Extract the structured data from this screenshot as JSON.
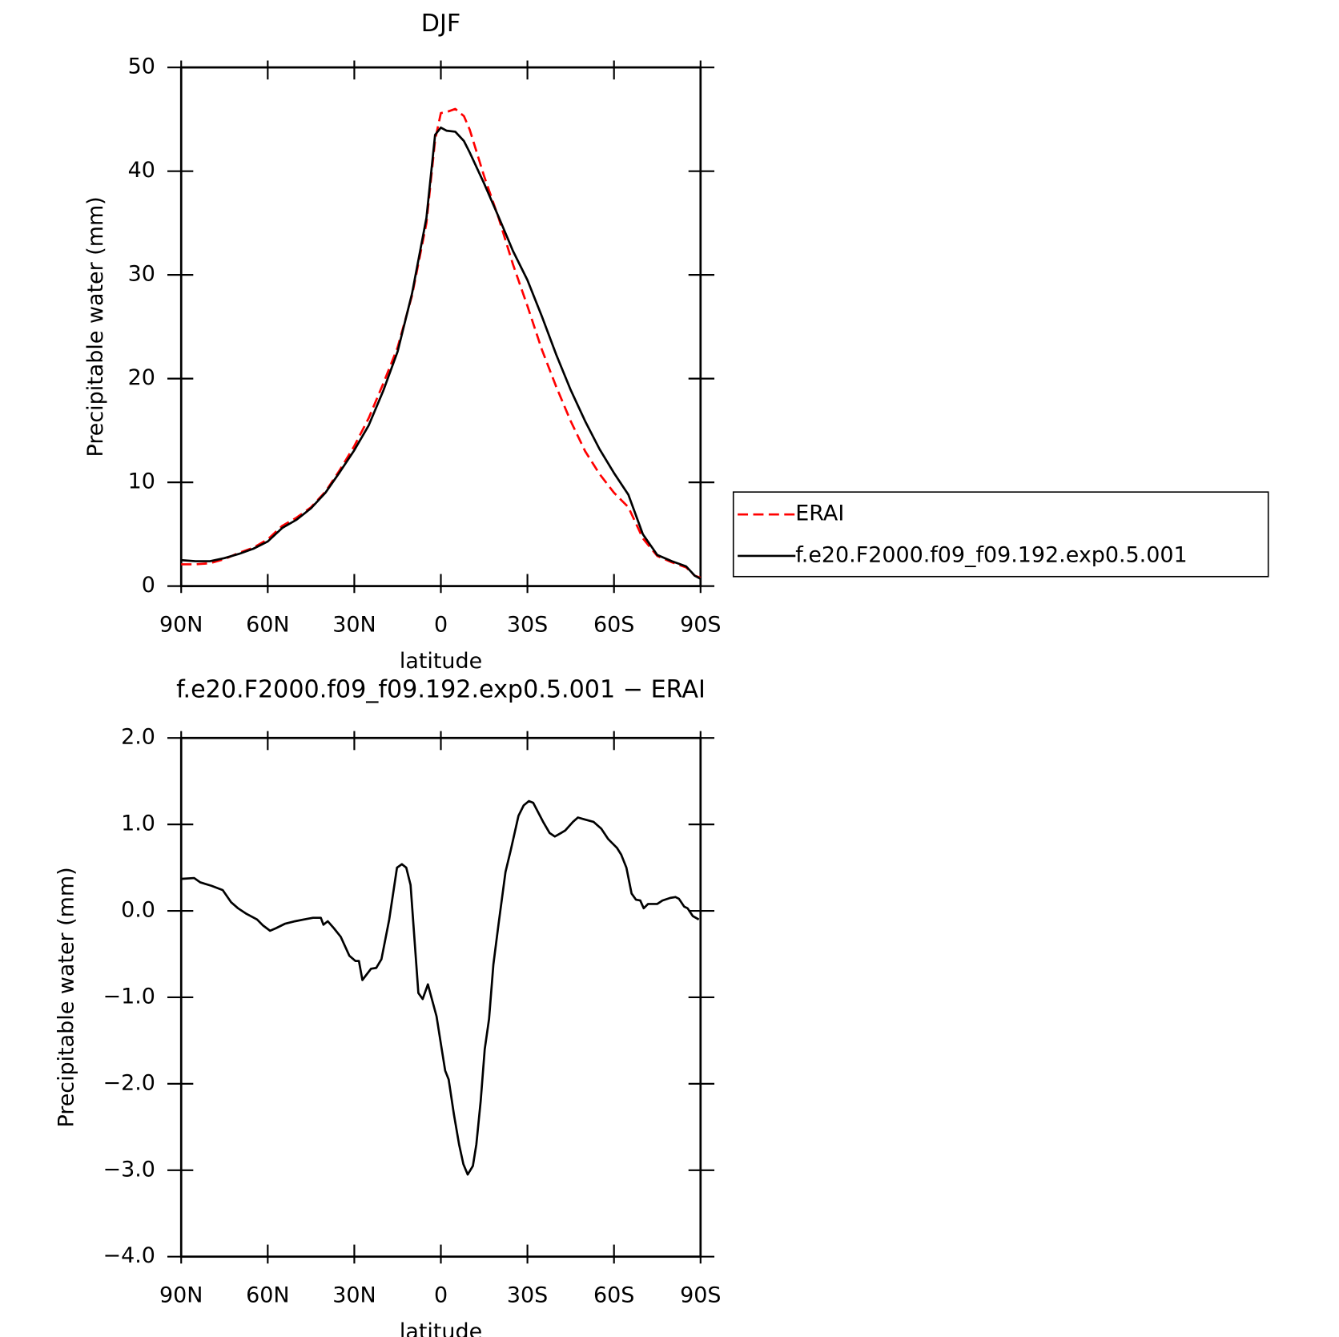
{
  "chart_data": [
    {
      "type": "line",
      "title": "DJF",
      "xlabel": "latitude",
      "ylabel": "Precipitable water (mm)",
      "x": [
        90,
        85,
        80,
        75,
        70,
        65,
        60,
        55,
        50,
        45,
        40,
        35,
        30,
        25,
        20,
        15,
        10,
        5,
        2,
        0,
        -2,
        -5,
        -8,
        -10,
        -15,
        -20,
        -25,
        -30,
        -35,
        -40,
        -45,
        -50,
        -55,
        -60,
        -65,
        -70,
        -75,
        -80,
        -85,
        -88,
        -90
      ],
      "series": [
        {
          "name": "ERAI",
          "color": "#ff0000",
          "dash": true,
          "values": [
            2.1,
            2.1,
            2.2,
            2.6,
            3.2,
            3.7,
            4.5,
            5.8,
            6.6,
            7.6,
            9.1,
            11.2,
            13.5,
            16.2,
            19.5,
            23.0,
            28.0,
            35.0,
            43.0,
            45.6,
            45.7,
            46.0,
            45.3,
            44.0,
            39.5,
            35.5,
            31.0,
            27.0,
            22.8,
            19.2,
            15.9,
            13.0,
            10.8,
            9.0,
            7.6,
            4.6,
            2.9,
            2.3,
            1.8,
            1.0,
            0.8
          ]
        },
        {
          "name": "f.e20.F2000.f09_f09.192.exp0.5.001",
          "color": "#000000",
          "dash": false,
          "values": [
            2.5,
            2.4,
            2.4,
            2.7,
            3.1,
            3.6,
            4.3,
            5.6,
            6.4,
            7.5,
            9.0,
            11.0,
            13.1,
            15.5,
            18.8,
            22.6,
            28.2,
            35.5,
            43.5,
            44.2,
            43.9,
            43.8,
            42.9,
            41.8,
            38.8,
            35.6,
            32.3,
            29.5,
            26.0,
            22.3,
            18.9,
            15.9,
            13.2,
            10.9,
            8.8,
            5.0,
            3.0,
            2.4,
            1.9,
            1.0,
            0.7
          ]
        }
      ],
      "xlim": [
        90,
        -90
      ],
      "xticks": [
        {
          "value": 90,
          "label": "90N"
        },
        {
          "value": 60,
          "label": "60N"
        },
        {
          "value": 30,
          "label": "30N"
        },
        0,
        {
          "value": -30,
          "label": "30S"
        },
        {
          "value": -60,
          "label": "60S"
        },
        {
          "value": -90,
          "label": "90S"
        }
      ],
      "ylim": [
        0,
        50
      ],
      "yticks": [
        0,
        10,
        20,
        30,
        40,
        50
      ],
      "legend": "right"
    },
    {
      "type": "line",
      "title": "f.e20.F2000.f09_f09.192.exp0.5.001 − ERAI",
      "xlabel": "latitude",
      "ylabel": "Precipitable water (mm)",
      "x": [
        90,
        85.5,
        83.4,
        79.5,
        75.6,
        72.7,
        70.3,
        67.6,
        63.7,
        61.6,
        59.2,
        57.1,
        54.1,
        50.5,
        47.5,
        44.3,
        41.6,
        40.7,
        39.2,
        37.1,
        34.7,
        31.7,
        29.6,
        28.4,
        27.2,
        24.2,
        22.4,
        20.6,
        17.9,
        15.2,
        13.5,
        12,
        10.5,
        7.8,
        6.3,
        4.5,
        1.5,
        -0.3,
        -1.5,
        -2.7,
        -4.5,
        -6.3,
        -7.8,
        -9.3,
        -11.1,
        -12.3,
        -13.8,
        -15.2,
        -16.7,
        -18.2,
        -20,
        -22.4,
        -24.2,
        -26.9,
        -28.7,
        -30.5,
        -32,
        -35.6,
        -37.7,
        -39.5,
        -41.6,
        -43.1,
        -45.8,
        -47.5,
        -49.6,
        -52.9,
        -55.6,
        -58,
        -61,
        -62.5,
        -64.3,
        -66.1,
        -67.6,
        -69.1,
        -70.3,
        -71.8,
        -75,
        -76.8,
        -79.5,
        -81.3,
        -82.5,
        -84.3,
        -85.5,
        -87.3,
        -89.4
      ],
      "series": [
        {
          "name": "f.e20.F2000.f09_f09.192.exp0.5.001 − ERAI",
          "color": "#000000",
          "dash": false,
          "values": [
            0.37,
            0.38,
            0.33,
            0.29,
            0.24,
            0.1,
            0.03,
            -0.03,
            -0.1,
            -0.17,
            -0.23,
            -0.2,
            -0.15,
            -0.12,
            -0.1,
            -0.08,
            -0.08,
            -0.16,
            -0.12,
            -0.2,
            -0.3,
            -0.52,
            -0.58,
            -0.58,
            -0.8,
            -0.67,
            -0.66,
            -0.56,
            -0.1,
            0.5,
            0.54,
            0.5,
            0.3,
            -0.95,
            -1.02,
            -0.85,
            -1.22,
            -1.6,
            -1.85,
            -1.95,
            -2.35,
            -2.7,
            -2.93,
            -3.05,
            -2.95,
            -2.7,
            -2.2,
            -1.6,
            -1.25,
            -0.62,
            -0.15,
            0.45,
            0.7,
            1.1,
            1.22,
            1.27,
            1.25,
            1.02,
            0.9,
            0.86,
            0.9,
            0.93,
            1.03,
            1.08,
            1.06,
            1.03,
            0.95,
            0.83,
            0.73,
            0.65,
            0.5,
            0.2,
            0.13,
            0.12,
            0.03,
            0.08,
            0.08,
            0.12,
            0.15,
            0.16,
            0.14,
            0.05,
            0.03,
            -0.06,
            -0.1
          ]
        }
      ],
      "xlim": [
        90,
        -90
      ],
      "xticks": [
        {
          "value": 90,
          "label": "90N"
        },
        {
          "value": 60,
          "label": "60N"
        },
        {
          "value": 30,
          "label": "30N"
        },
        0,
        {
          "value": -30,
          "label": "30S"
        },
        {
          "value": -60,
          "label": "60S"
        },
        {
          "value": -90,
          "label": "90S"
        }
      ],
      "ylim": [
        -4,
        2
      ],
      "yticks": [
        {
          "value": -4,
          "label": "−4.0"
        },
        {
          "value": -3,
          "label": "−3.0"
        },
        {
          "value": -2,
          "label": "−2.0"
        },
        {
          "value": -1,
          "label": "−1.0"
        },
        {
          "value": 0,
          "label": "0.0"
        },
        {
          "value": 1,
          "label": "1.0"
        },
        {
          "value": 2,
          "label": "2.0"
        }
      ]
    }
  ]
}
